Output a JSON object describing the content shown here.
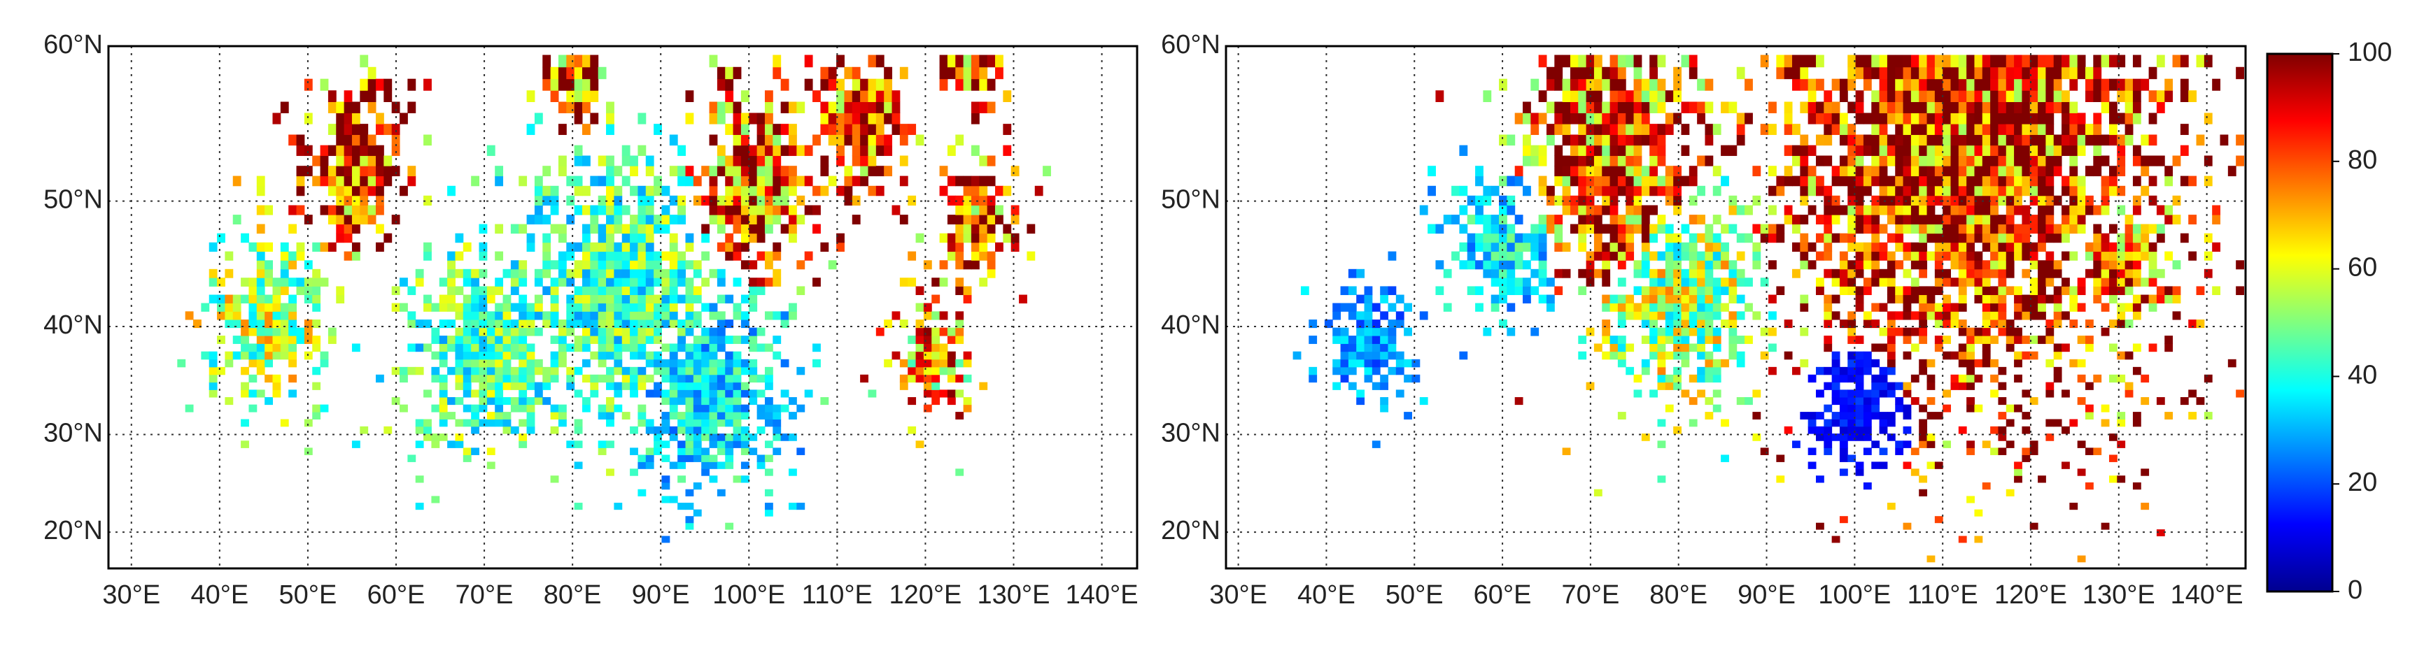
{
  "maps": [
    {
      "lat_range": [
        16.1,
        60
      ],
      "lon_range": [
        27.4,
        144
      ],
      "lat_ticks": [
        {
          "value": 60,
          "label": "60°N"
        },
        {
          "value": 50,
          "label": "50°N"
        },
        {
          "value": 40,
          "label": "40°N"
        },
        {
          "value": 30,
          "label": "30°N"
        },
        {
          "value": 20,
          "label": "20°N"
        }
      ],
      "lon_ticks": [
        {
          "value": 30,
          "label": "30°E"
        },
        {
          "value": 40,
          "label": "40°E"
        },
        {
          "value": 50,
          "label": "50°E"
        },
        {
          "value": 60,
          "label": "60°E"
        },
        {
          "value": 70,
          "label": "70°E"
        },
        {
          "value": 80,
          "label": "80°E"
        },
        {
          "value": 90,
          "label": "90°E"
        },
        {
          "value": 100,
          "label": "100°E"
        },
        {
          "value": 110,
          "label": "110°E"
        },
        {
          "value": 120,
          "label": "120°E"
        },
        {
          "value": 130,
          "label": "130°E"
        },
        {
          "value": 140,
          "label": "140°E"
        }
      ]
    },
    {
      "lat_range": [
        16.1,
        60
      ],
      "lon_range": [
        28.6,
        144.4
      ],
      "lat_ticks": [
        {
          "value": 60,
          "label": "60°N"
        },
        {
          "value": 50,
          "label": "50°N"
        },
        {
          "value": 40,
          "label": "40°N"
        },
        {
          "value": 30,
          "label": "30°N"
        },
        {
          "value": 20,
          "label": "20°N"
        }
      ],
      "lon_ticks": [
        {
          "value": 30,
          "label": "30°E"
        },
        {
          "value": 40,
          "label": "40°E"
        },
        {
          "value": 50,
          "label": "50°E"
        },
        {
          "value": 60,
          "label": "60°E"
        },
        {
          "value": 70,
          "label": "70°E"
        },
        {
          "value": 80,
          "label": "80°E"
        },
        {
          "value": 90,
          "label": "90°E"
        },
        {
          "value": 100,
          "label": "100°E"
        },
        {
          "value": 110,
          "label": "110°E"
        },
        {
          "value": 120,
          "label": "120°E"
        },
        {
          "value": 130,
          "label": "130°E"
        },
        {
          "value": 140,
          "label": "140°E"
        }
      ]
    }
  ],
  "colorbar": {
    "range": [
      0,
      100
    ],
    "ticks": [
      0,
      20,
      40,
      60,
      80,
      100
    ]
  }
}
